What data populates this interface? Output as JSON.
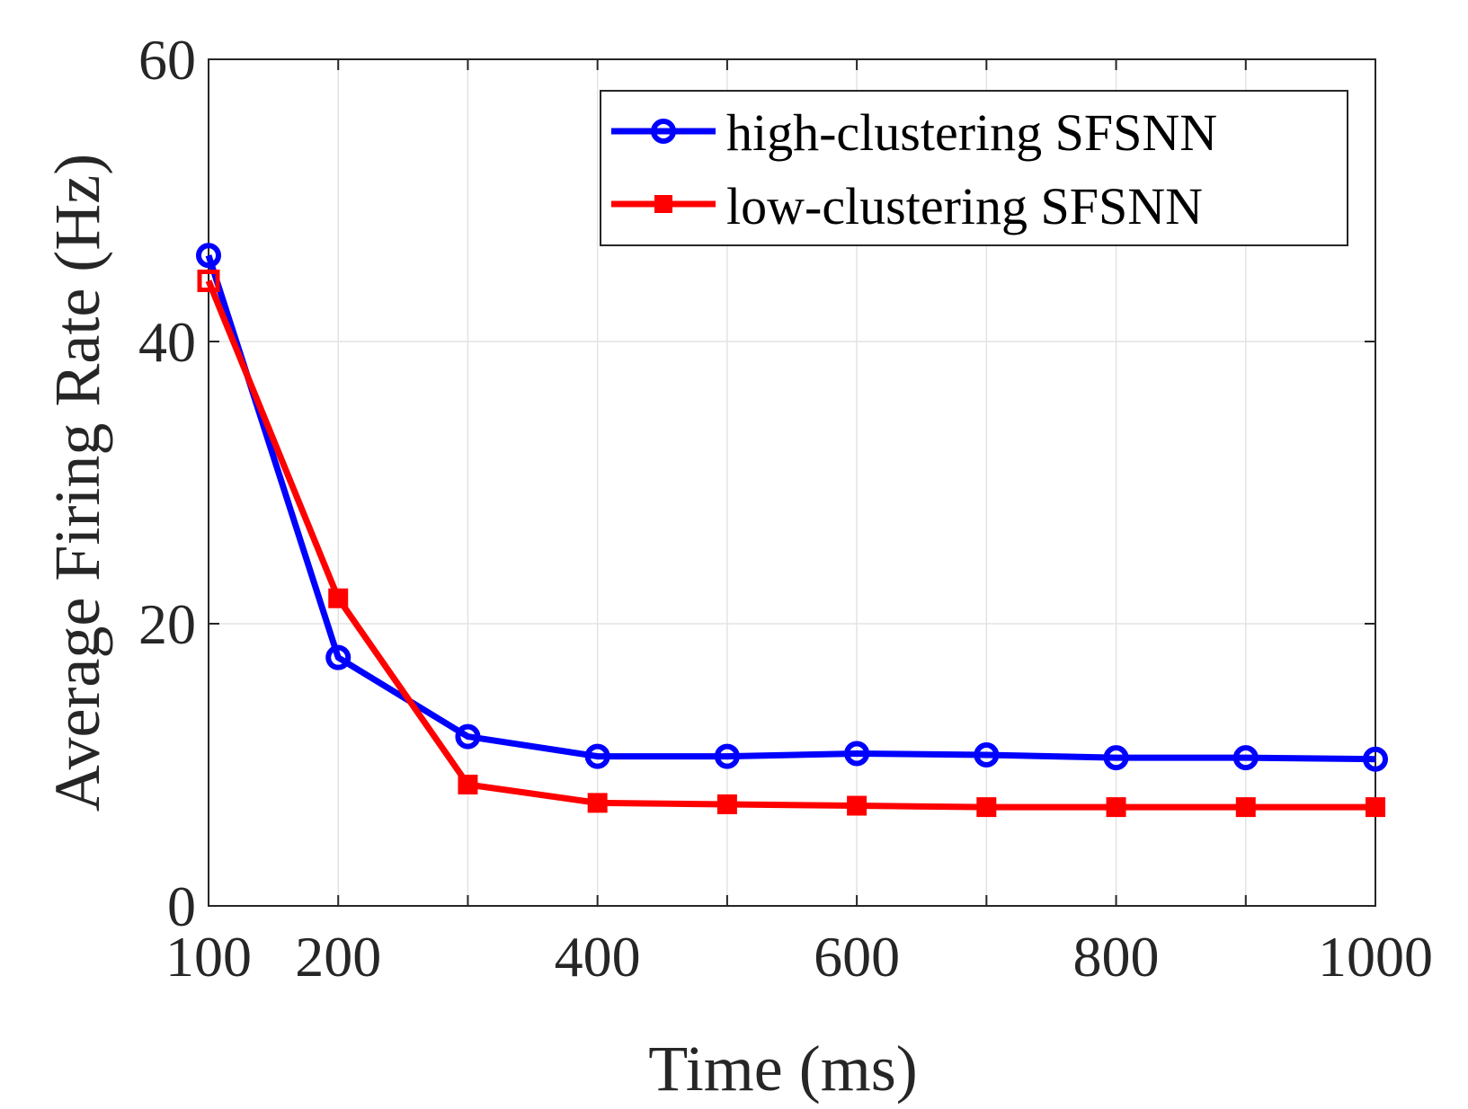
{
  "chart_data": {
    "type": "line",
    "title": "",
    "xlabel": "Time (ms)",
    "ylabel": "Average Firing Rate (Hz)",
    "xlim": [
      100,
      1000
    ],
    "ylim": [
      0,
      60
    ],
    "xticks": [
      100,
      200,
      400,
      600,
      800,
      1000
    ],
    "xtick_labels": [
      "100",
      "200",
      "400",
      "600",
      "800",
      "1000"
    ],
    "yticks": [
      0,
      20,
      40,
      60
    ],
    "ytick_labels": [
      "0",
      "20",
      "40",
      "60"
    ],
    "grid_x": [
      100,
      200,
      300,
      400,
      500,
      600,
      700,
      800,
      900,
      1000
    ],
    "grid_y": [
      0,
      20,
      40,
      60
    ],
    "grid": true,
    "legend_position": "top-right",
    "x": [
      100,
      200,
      300,
      400,
      500,
      600,
      700,
      800,
      900,
      1000
    ],
    "series": [
      {
        "name": "high-clustering SFSNN",
        "color": "#0000ff",
        "marker": "circle",
        "values": [
          46.1,
          17.6,
          12.0,
          10.6,
          10.6,
          10.8,
          10.7,
          10.5,
          10.5,
          10.4
        ]
      },
      {
        "name": "low-clustering SFSNN",
        "color": "#ff0000",
        "marker": "square",
        "values": [
          44.3,
          21.8,
          8.6,
          7.3,
          7.2,
          7.1,
          7.0,
          7.0,
          7.0,
          7.0
        ]
      }
    ]
  }
}
